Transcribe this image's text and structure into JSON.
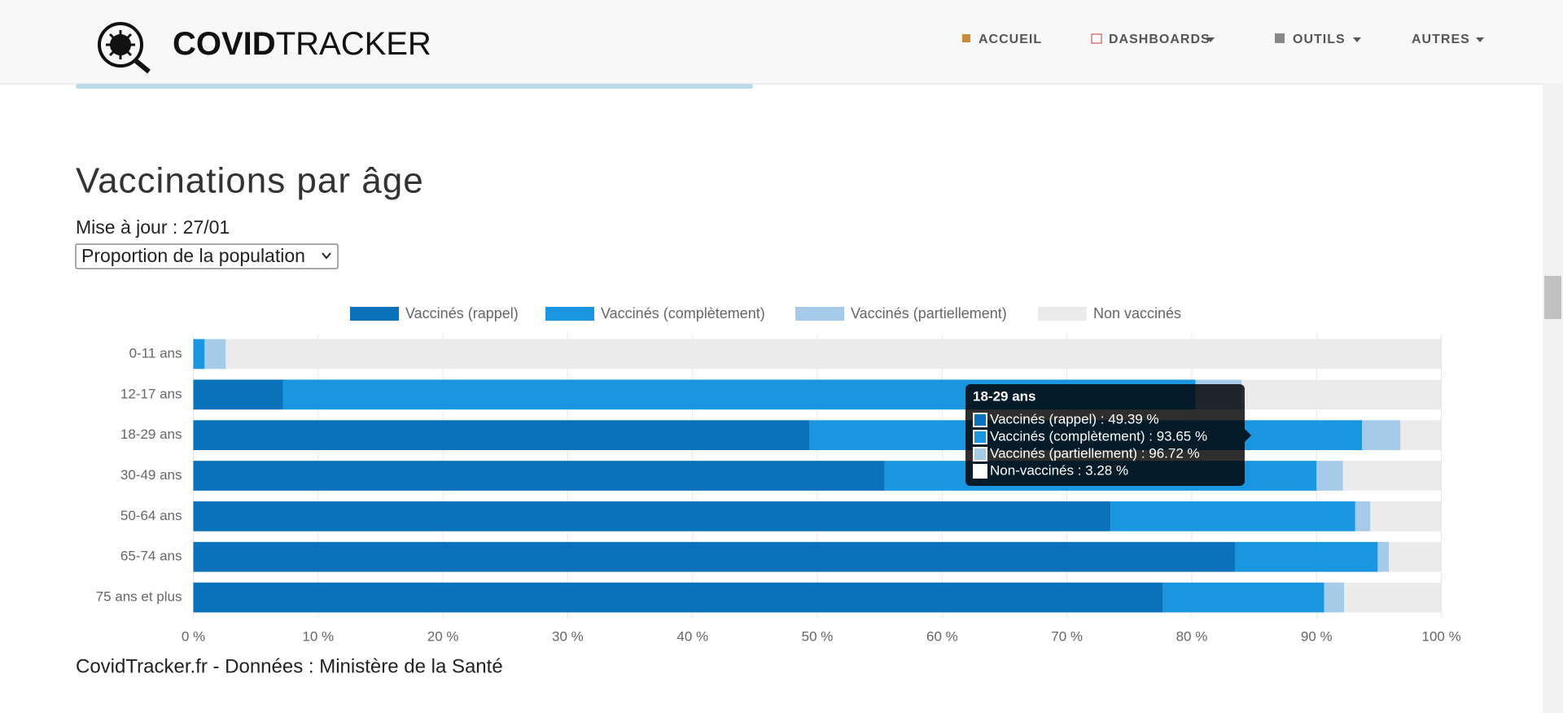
{
  "header": {
    "brand_bold": "COVID",
    "brand_light": "TRACKER",
    "nav": [
      "ACCUEIL",
      "DASHBOARDS",
      "OUTILS",
      "AUTRES"
    ]
  },
  "section": {
    "title": "Vaccinations par âge",
    "updated": "Mise à jour : 27/01",
    "select": "Proportion de la population",
    "source": "CovidTracker.fr - Données : Ministère de la Santé"
  },
  "tooltip": {
    "title": "18-29 ans",
    "lines": [
      "Vaccinés (rappel) : 49.39 %",
      "Vaccinés (complètement) : 93.65 %",
      "Vaccinés (partiellement) : 96.72 %",
      "Non-vaccinés : 3.28 %"
    ]
  },
  "chart_data": {
    "type": "stacked-barh",
    "categories": [
      "0-11 ans",
      "12-17 ans",
      "18-29 ans",
      "30-49 ans",
      "50-64 ans",
      "65-74 ans",
      "75 ans et plus"
    ],
    "series": [
      {
        "name": "Vaccinés (rappel)",
        "color": "#0a72ba",
        "values": [
          0,
          7.2,
          49.39,
          55.4,
          73.5,
          83.5,
          77.7
        ]
      },
      {
        "name": "Vaccinés (complètement)",
        "color": "#1a95e0",
        "values": [
          0.9,
          73.1,
          44.26,
          34.6,
          19.6,
          11.4,
          12.9
        ]
      },
      {
        "name": "Vaccinés (partiellement)",
        "color": "#a6cbe8",
        "values": [
          1.7,
          3.7,
          3.07,
          2.1,
          1.2,
          0.9,
          1.6
        ]
      },
      {
        "name": "Non vaccinés",
        "color": "#ebebeb",
        "values": [
          97.4,
          16,
          3.28,
          7.9,
          5.7,
          4.2,
          7.8
        ]
      }
    ],
    "xlim": [
      0,
      100
    ],
    "xticks": [
      {
        "value": 0,
        "label": "0 %"
      },
      {
        "value": 10,
        "label": "10 %"
      },
      {
        "value": 20,
        "label": "20 %"
      },
      {
        "value": 30,
        "label": "30 %"
      },
      {
        "value": 40,
        "label": "40 %"
      },
      {
        "value": 50,
        "label": "50 %"
      },
      {
        "value": 60,
        "label": "60 %"
      },
      {
        "value": 70,
        "label": "70 %"
      },
      {
        "value": 80,
        "label": "80 %"
      },
      {
        "value": 90,
        "label": "90 %"
      },
      {
        "value": 100,
        "label": "100 %"
      }
    ],
    "grid": true,
    "legend": "top"
  }
}
